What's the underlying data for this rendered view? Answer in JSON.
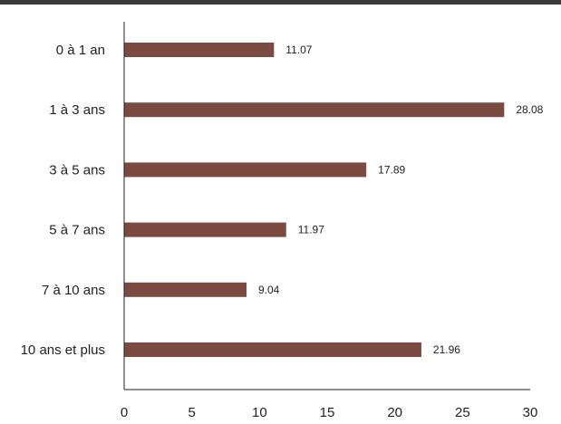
{
  "chart_data": {
    "type": "bar",
    "orientation": "horizontal",
    "title": "",
    "xlabel": "",
    "ylabel": "",
    "categories": [
      "0 à 1 an",
      "1 à 3 ans",
      "3 à 5 ans",
      "5 à 7 ans",
      "7 à 10 ans",
      "10 ans et plus"
    ],
    "values": [
      11.07,
      28.08,
      17.89,
      11.97,
      9.04,
      21.96
    ],
    "value_labels": [
      "11.07",
      "28.08",
      "17.89",
      "11.97",
      "9.04",
      "21.96"
    ],
    "xlim": [
      0,
      30
    ],
    "xticks": [
      "0",
      "5",
      "10",
      "15",
      "20",
      "25",
      "30"
    ],
    "grid": false,
    "legend": "none",
    "colors": {
      "bar": "#7b4a40",
      "axis": "#222222",
      "top_rule": "#3a3a3a"
    }
  }
}
